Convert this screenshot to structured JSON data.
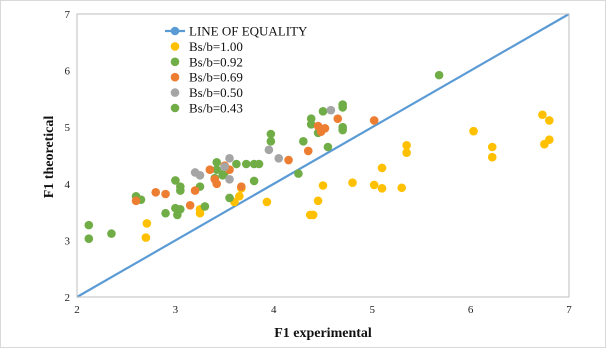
{
  "chart_data": {
    "type": "scatter",
    "title": "",
    "xlabel": "F1 experimental",
    "ylabel": "F1 theoretical",
    "xlim": [
      2,
      7
    ],
    "ylim": [
      2,
      7
    ],
    "x_ticks": [
      "2",
      "3",
      "4",
      "5",
      "6",
      "7"
    ],
    "y_ticks": [
      "2",
      "3",
      "4",
      "5",
      "6",
      "7"
    ],
    "grid": false,
    "legend_position": "top-left",
    "equality_line": {
      "name": "LINE OF EQUALITY",
      "color": "#5b9bd5",
      "points": [
        [
          2,
          2
        ],
        [
          7,
          7
        ]
      ]
    },
    "series": [
      {
        "name": "Bs/b=1.00",
        "color": "#ffc000",
        "points": [
          [
            2.7,
            3.05
          ],
          [
            2.71,
            3.3
          ],
          [
            3.25,
            3.55
          ],
          [
            3.25,
            3.48
          ],
          [
            3.6,
            3.68
          ],
          [
            3.65,
            3.78
          ],
          [
            3.67,
            3.92
          ],
          [
            3.93,
            3.68
          ],
          [
            4.37,
            3.45
          ],
          [
            4.4,
            3.45
          ],
          [
            4.45,
            3.7
          ],
          [
            4.5,
            3.97
          ],
          [
            4.8,
            4.02
          ],
          [
            5.02,
            3.98
          ],
          [
            5.1,
            3.92
          ],
          [
            5.1,
            4.28
          ],
          [
            5.3,
            3.93
          ],
          [
            5.35,
            4.55
          ],
          [
            5.35,
            4.68
          ],
          [
            6.03,
            4.93
          ],
          [
            6.22,
            4.65
          ],
          [
            6.22,
            4.47
          ],
          [
            6.73,
            5.22
          ],
          [
            6.75,
            4.7
          ],
          [
            6.8,
            5.12
          ],
          [
            6.8,
            4.78
          ]
        ]
      },
      {
        "name": "Bs/b=0.92",
        "color": "#70ad47",
        "points": [
          [
            2.12,
            3.27
          ],
          [
            2.12,
            3.03
          ],
          [
            2.35,
            3.12
          ],
          [
            2.6,
            3.78
          ],
          [
            2.65,
            3.72
          ],
          [
            2.9,
            3.48
          ],
          [
            3.0,
            3.57
          ],
          [
            3.0,
            4.06
          ],
          [
            3.02,
            3.45
          ],
          [
            3.05,
            3.55
          ],
          [
            3.05,
            3.88
          ],
          [
            3.05,
            3.95
          ],
          [
            3.25,
            3.95
          ],
          [
            3.3,
            3.6
          ],
          [
            3.4,
            4.1
          ],
          [
            3.42,
            4.25
          ],
          [
            3.42,
            4.38
          ],
          [
            3.48,
            4.15
          ],
          [
            3.5,
            4.2
          ],
          [
            3.55,
            3.75
          ],
          [
            3.62,
            4.35
          ],
          [
            3.72,
            4.35
          ],
          [
            3.8,
            4.35
          ],
          [
            3.8,
            4.05
          ],
          [
            3.85,
            4.35
          ],
          [
            3.97,
            4.75
          ],
          [
            3.97,
            4.88
          ],
          [
            4.25,
            4.18
          ],
          [
            4.3,
            4.75
          ],
          [
            4.38,
            5.05
          ],
          [
            4.38,
            5.15
          ],
          [
            4.45,
            4.9
          ],
          [
            4.5,
            5.28
          ],
          [
            4.55,
            4.65
          ],
          [
            4.7,
            5.35
          ],
          [
            4.7,
            5.4
          ],
          [
            4.7,
            4.95
          ],
          [
            4.7,
            5.0
          ],
          [
            5.68,
            5.92
          ]
        ]
      },
      {
        "name": "Bs/b=0.69",
        "color": "#ed7d31",
        "points": [
          [
            2.6,
            3.7
          ],
          [
            2.8,
            3.85
          ],
          [
            2.9,
            3.82
          ],
          [
            3.15,
            3.62
          ],
          [
            3.2,
            3.88
          ],
          [
            3.35,
            4.25
          ],
          [
            3.4,
            4.08
          ],
          [
            3.42,
            4.0
          ],
          [
            3.5,
            4.32
          ],
          [
            3.55,
            4.25
          ],
          [
            3.67,
            3.95
          ],
          [
            4.15,
            4.42
          ],
          [
            4.35,
            4.58
          ],
          [
            4.45,
            5.02
          ],
          [
            4.48,
            4.92
          ],
          [
            4.52,
            4.98
          ],
          [
            4.65,
            5.15
          ],
          [
            5.02,
            5.12
          ]
        ]
      },
      {
        "name": "Bs/b=0.50",
        "color": "#a5a5a5",
        "points": [
          [
            3.2,
            4.2
          ],
          [
            3.25,
            4.15
          ],
          [
            3.5,
            4.3
          ],
          [
            3.55,
            4.45
          ],
          [
            3.55,
            4.08
          ],
          [
            3.95,
            4.6
          ],
          [
            4.05,
            4.45
          ],
          [
            4.58,
            5.3
          ]
        ]
      },
      {
        "name": "Bs/b=0.43",
        "color": "#70ad47",
        "points": []
      }
    ]
  }
}
